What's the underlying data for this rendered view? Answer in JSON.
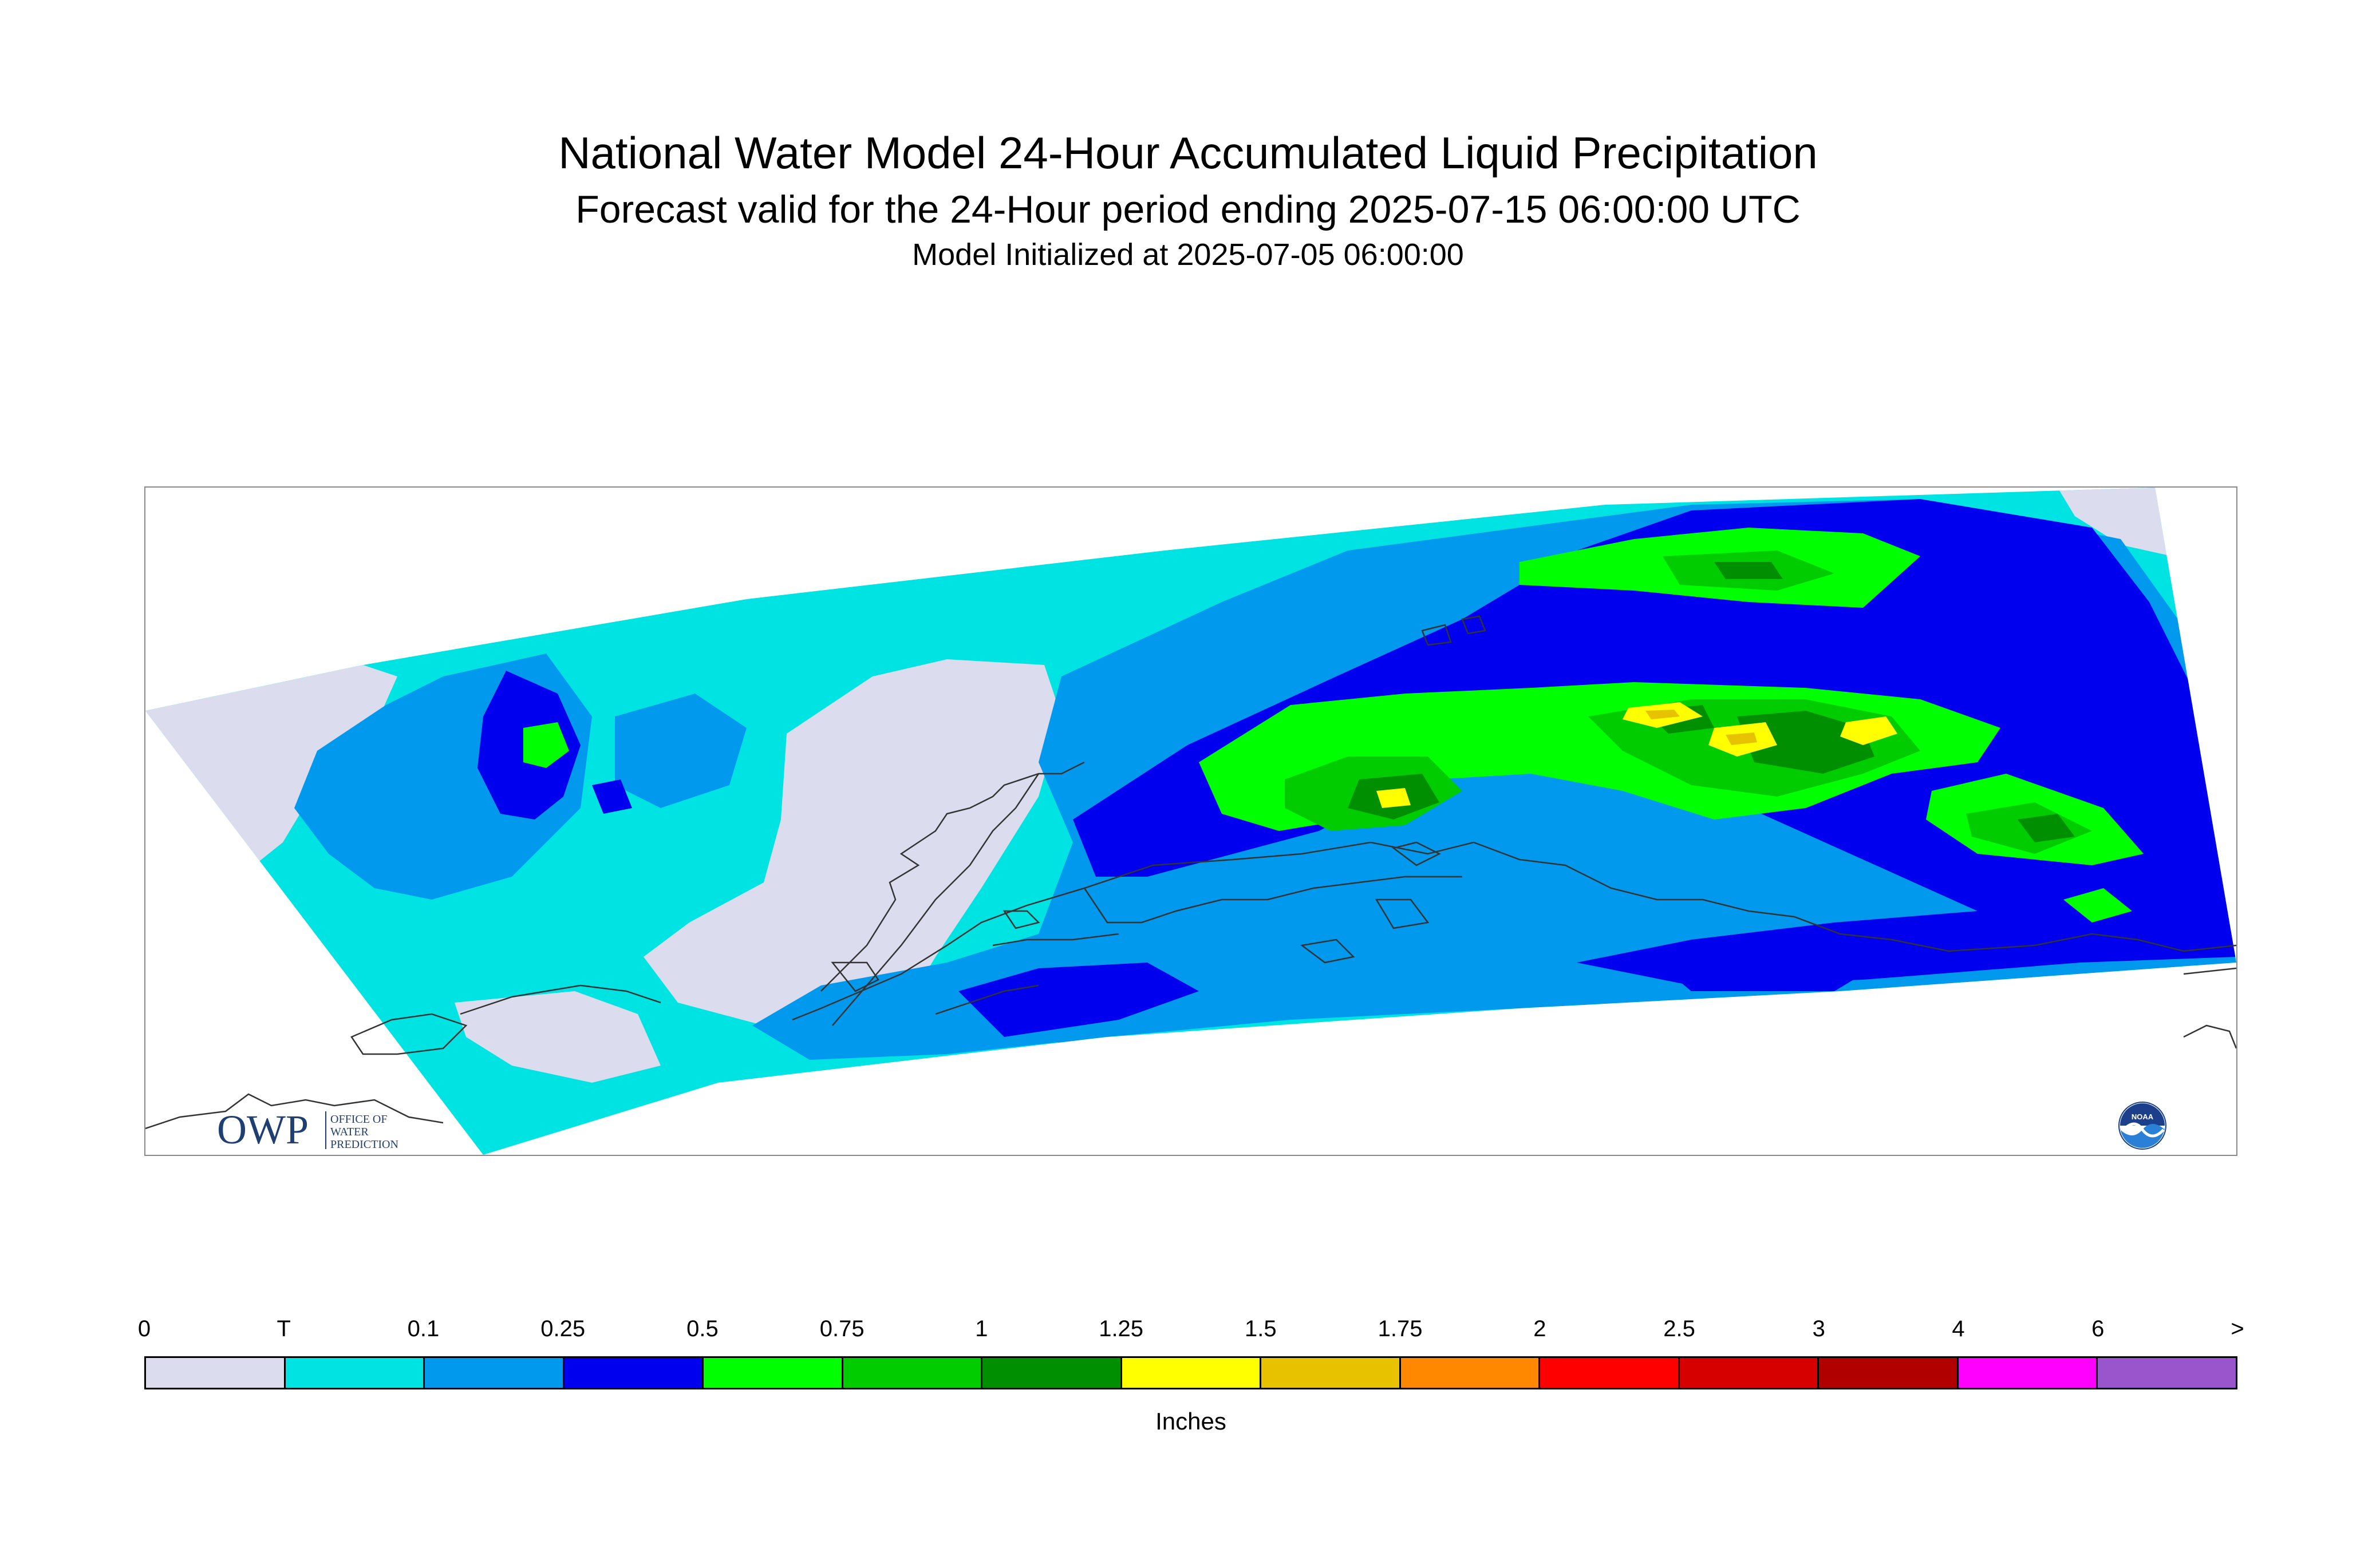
{
  "header": {
    "title": "National Water Model 24-Hour Accumulated Liquid Precipitation",
    "subtitle": "Forecast valid for the 24-Hour period ending 2025-07-15 06:00:00 UTC",
    "init_line": "Model Initialized at 2025-07-05 06:00:00"
  },
  "map": {
    "logos": {
      "owp_mark": "OWP",
      "owp_text": [
        "OFFICE OF",
        "WATER",
        "PREDICTION"
      ],
      "noaa_text": "NOAA"
    },
    "colors": {
      "land_outline": "#333333",
      "frame": "#8a8a8a"
    }
  },
  "legend": {
    "ticks": [
      "0",
      "T",
      "0.1",
      "0.25",
      "0.5",
      "0.75",
      "1",
      "1.25",
      "1.5",
      "1.75",
      "2",
      "2.5",
      "3",
      "4",
      "6",
      ">"
    ],
    "colors": [
      "#dcdcef",
      "#00e3e3",
      "#0099ee",
      "#0000ee",
      "#00ff00",
      "#00cc00",
      "#008f00",
      "#ffff00",
      "#e6c200",
      "#ff8800",
      "#ff0000",
      "#d60000",
      "#b00000",
      "#ff00ff",
      "#9955cc"
    ],
    "units": "Inches"
  }
}
